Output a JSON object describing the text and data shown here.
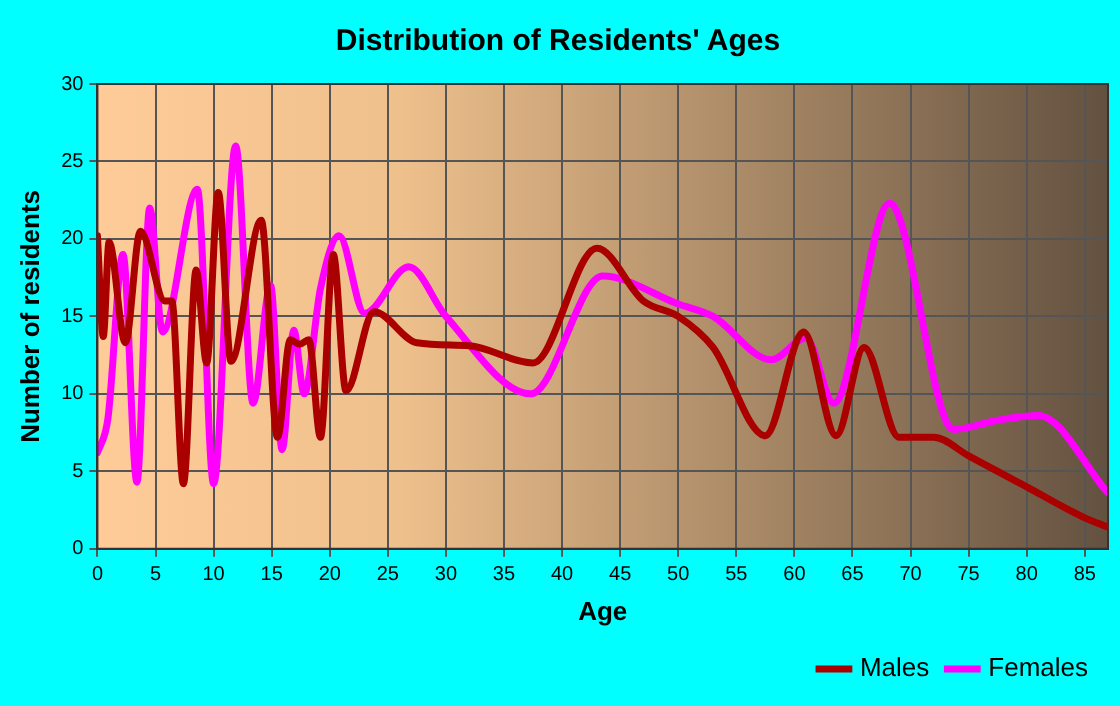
{
  "chart_data": {
    "type": "line",
    "title": "Distribution of Residents' Ages",
    "xlabel": "Age",
    "ylabel": "Number of residents",
    "xlim": [
      0,
      87
    ],
    "xticks": [
      0,
      5,
      10,
      15,
      20,
      25,
      30,
      35,
      40,
      45,
      50,
      55,
      60,
      65,
      70,
      75,
      80,
      85
    ],
    "ylim": [
      0,
      30
    ],
    "yticks": [
      0,
      5,
      10,
      15,
      20,
      25,
      30
    ],
    "grid": true,
    "legend": "bottom right",
    "marker": "none",
    "line_style": "solid",
    "series": [
      {
        "name": "Males",
        "color": "#aa0000",
        "x": [
          0,
          0.5,
          1,
          2.4,
          3.7,
          5.8,
          6.4,
          7.4,
          8.5,
          9.4,
          10.4,
          11.5,
          14.1,
          15.5,
          16.6,
          17.4,
          18.2,
          19.2,
          20.3,
          21.4,
          23.8,
          27.5,
          32,
          37.5,
          43,
          47,
          50,
          53,
          57.5,
          60.8,
          63.6,
          66,
          69,
          72,
          75,
          80,
          85,
          87
        ],
        "values": [
          20.2,
          13.7,
          19.8,
          13.3,
          20.5,
          16,
          16,
          4.2,
          18,
          12,
          23,
          12.1,
          21.2,
          7.2,
          13.5,
          13.2,
          13.5,
          7.2,
          19,
          10.2,
          15.3,
          13.3,
          13.1,
          12,
          19.4,
          16,
          15,
          13,
          7.3,
          14,
          7.3,
          13,
          7.2,
          7.2,
          6,
          4,
          2,
          1.4
        ]
      },
      {
        "name": "Females",
        "color": "#ff00ff",
        "x": [
          0,
          0.9,
          2.2,
          3.4,
          4.5,
          5.6,
          8.6,
          10,
          11.9,
          13.4,
          14.9,
          15.9,
          16.9,
          17.8,
          19.2,
          20.8,
          23,
          26.8,
          30,
          37.3,
          43.5,
          50,
          53,
          58,
          61,
          63.4,
          68.2,
          73.7,
          77.5,
          81,
          87
        ],
        "values": [
          6.2,
          8.4,
          19,
          4.3,
          22,
          14,
          23.2,
          4.2,
          26,
          9.4,
          17,
          6.4,
          14.1,
          10,
          16.8,
          20.2,
          15.2,
          18.2,
          15,
          10,
          17.6,
          15.8,
          15,
          12.2,
          13.6,
          9.4,
          22.3,
          7.7,
          8.3,
          8.6,
          3.6
        ]
      }
    ]
  }
}
